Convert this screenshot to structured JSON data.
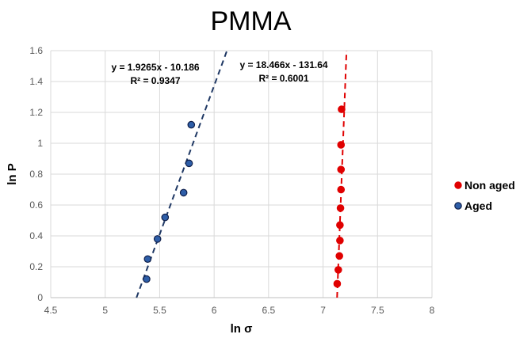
{
  "chart_data": {
    "type": "scatter",
    "title": "PMMA",
    "xlabel": "ln σ",
    "ylabel": "ln P",
    "xlim": [
      4.5,
      8
    ],
    "ylim": [
      0,
      1.6
    ],
    "xticks": [
      4.5,
      5,
      5.5,
      6,
      6.5,
      7,
      7.5,
      8
    ],
    "yticks": [
      0,
      0.2,
      0.4,
      0.6,
      0.8,
      1,
      1.2,
      1.4,
      1.6
    ],
    "xtick_labels": [
      "4.5",
      "5",
      "5.5",
      "6",
      "6.5",
      "7",
      "7.5",
      "8"
    ],
    "ytick_labels": [
      "0",
      "0.2",
      "0.4",
      "0.6",
      "0.8",
      "1",
      "1.2",
      "1.4",
      "1.6"
    ],
    "grid": true,
    "legend_position": "right",
    "series": [
      {
        "name": "Non aged",
        "color": "#e00000",
        "edge_color": "#e00000",
        "points": [
          [
            7.13,
            0.09
          ],
          [
            7.14,
            0.18
          ],
          [
            7.15,
            0.27
          ],
          [
            7.155,
            0.37
          ],
          [
            7.155,
            0.47
          ],
          [
            7.16,
            0.58
          ],
          [
            7.165,
            0.7
          ],
          [
            7.165,
            0.83
          ],
          [
            7.165,
            0.99
          ],
          [
            7.17,
            1.22
          ]
        ],
        "trendline": {
          "slope": 18.466,
          "intercept": -131.64,
          "equation": "y = 18.466x - 131.64",
          "r2": "R² = 0.6001",
          "color": "#e00000"
        }
      },
      {
        "name": "Aged",
        "color": "#2e5ea8",
        "edge_color": "#0f1f4a",
        "points": [
          [
            5.38,
            0.12
          ],
          [
            5.39,
            0.25
          ],
          [
            5.48,
            0.38
          ],
          [
            5.55,
            0.52
          ],
          [
            5.72,
            0.68
          ],
          [
            5.77,
            0.87
          ],
          [
            5.79,
            1.12
          ]
        ],
        "trendline": {
          "slope": 1.9265,
          "intercept": -10.186,
          "equation": "y = 1.9265x - 10.186",
          "r2": "R² = 0.9347",
          "color": "#1f3864"
        }
      }
    ]
  }
}
